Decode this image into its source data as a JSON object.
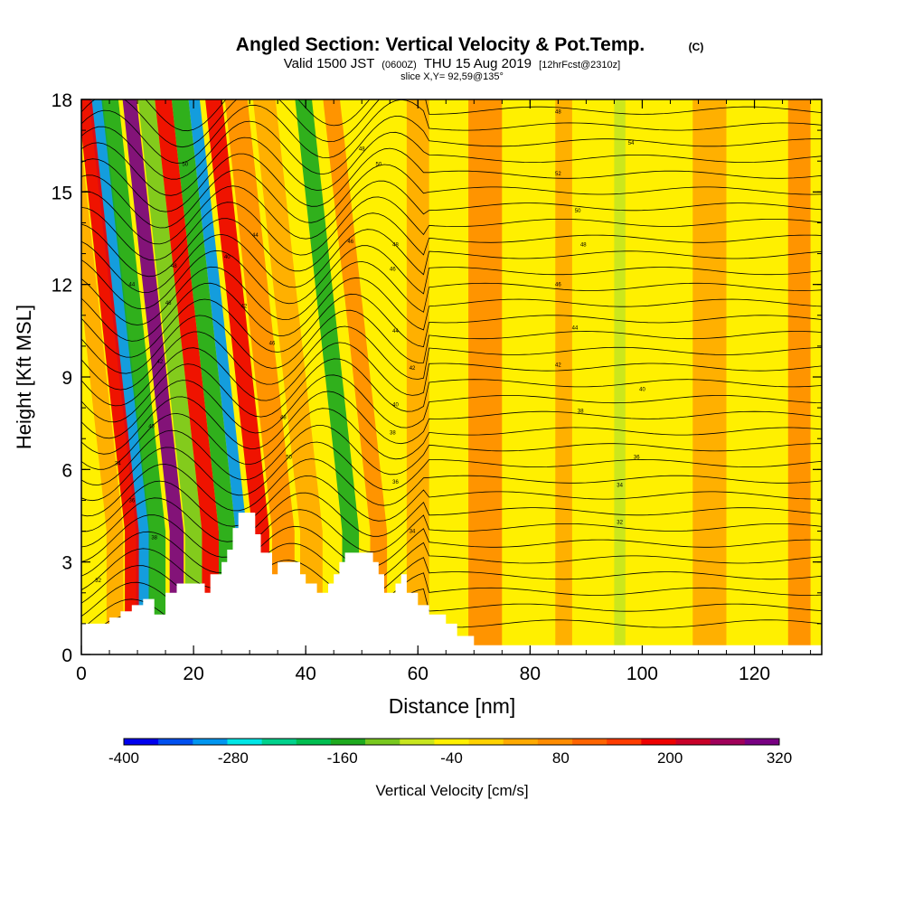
{
  "chart_data": {
    "type": "heatmap",
    "title": "Angled Section: Vertical Velocity & Pot.Temp.",
    "title_mark": "(C)",
    "subtitle": {
      "valid_prefix": "Valid 1500 JST",
      "utc": "(0600Z)",
      "date": "THU 15 Aug 2019",
      "forecast": "[12hrFcst@2310z]"
    },
    "slice_label": "slice X,Y= 92,59@135°",
    "xlabel": "Distance [nm]",
    "ylabel": "Height [Kft MSL]",
    "xlim": [
      0,
      132
    ],
    "ylim": [
      0,
      18
    ],
    "x_ticks": [
      "0",
      "20",
      "40",
      "60",
      "80",
      "100",
      "120"
    ],
    "y_ticks": [
      "0",
      "3",
      "6",
      "9",
      "12",
      "15",
      "18"
    ],
    "colorbar": {
      "label": "Vertical Velocity [cm/s]",
      "range": [
        -400,
        320
      ],
      "tick_labels": [
        "-400",
        "-280",
        "-160",
        "-40",
        "80",
        "200",
        "320"
      ],
      "colors": [
        "#0000ee",
        "#0050f0",
        "#0096f0",
        "#00e6e6",
        "#00d28c",
        "#00be50",
        "#1eaa1e",
        "#78c81e",
        "#c8e61e",
        "#fff000",
        "#ffd200",
        "#ffaa00",
        "#ff8c00",
        "#ff6400",
        "#ff3c00",
        "#ee0000",
        "#c80028",
        "#a0005a",
        "#780082"
      ]
    },
    "velocity_bands": [
      {
        "x": 6,
        "value": 40,
        "width": 3
      },
      {
        "x": 11,
        "value": -300,
        "width": 2.5
      },
      {
        "x": 9,
        "value": 200,
        "width": 2.5
      },
      {
        "x": 13.5,
        "value": -150,
        "width": 3
      },
      {
        "x": 17,
        "value": 320,
        "width": 2.5
      },
      {
        "x": 20,
        "value": -100,
        "width": 3
      },
      {
        "x": 23,
        "value": 200,
        "width": 3
      },
      {
        "x": 26,
        "value": -150,
        "width": 3
      },
      {
        "x": 28.5,
        "value": -320,
        "width": 2
      },
      {
        "x": 32,
        "value": 200,
        "width": 3
      },
      {
        "x": 36,
        "value": 80,
        "width": 4
      },
      {
        "x": 41,
        "value": 40,
        "width": 4
      },
      {
        "x": 48,
        "value": -160,
        "width": 3
      },
      {
        "x": 53,
        "value": 80,
        "width": 3
      },
      {
        "x": 60,
        "value": 40,
        "width": 4
      },
      {
        "x": 72,
        "value": 60,
        "width": 6
      },
      {
        "x": 86,
        "value": 50,
        "width": 3
      },
      {
        "x": 96,
        "value": -60,
        "width": 2
      },
      {
        "x": 112,
        "value": 50,
        "width": 6
      },
      {
        "x": 128,
        "value": 60,
        "width": 4
      }
    ],
    "terrain": [
      [
        0,
        1
      ],
      [
        5,
        1
      ],
      [
        5,
        1.2
      ],
      [
        7,
        1.2
      ],
      [
        7,
        1.4
      ],
      [
        9,
        1.4
      ],
      [
        9,
        1.6
      ],
      [
        11,
        1.6
      ],
      [
        11,
        1.8
      ],
      [
        13,
        1.8
      ],
      [
        13,
        1.3
      ],
      [
        15,
        1.3
      ],
      [
        15,
        2
      ],
      [
        17,
        2
      ],
      [
        17,
        2.3
      ],
      [
        22,
        2.3
      ],
      [
        22,
        2
      ],
      [
        23,
        2
      ],
      [
        23,
        2.6
      ],
      [
        25,
        2.6
      ],
      [
        25,
        3
      ],
      [
        26,
        3
      ],
      [
        26,
        3.4
      ],
      [
        27,
        3.4
      ],
      [
        27,
        4.1
      ],
      [
        28,
        4.1
      ],
      [
        28,
        4.6
      ],
      [
        31,
        4.6
      ],
      [
        31,
        3.9
      ],
      [
        32,
        3.9
      ],
      [
        32,
        3.3
      ],
      [
        34,
        3.3
      ],
      [
        34,
        2.6
      ],
      [
        35,
        2.6
      ],
      [
        35,
        3
      ],
      [
        39,
        3
      ],
      [
        39,
        2.6
      ],
      [
        40,
        2.6
      ],
      [
        40,
        2.3
      ],
      [
        42,
        2.3
      ],
      [
        42,
        2
      ],
      [
        44,
        2
      ],
      [
        44,
        2.3
      ],
      [
        45,
        2.3
      ],
      [
        45,
        2.6
      ],
      [
        46,
        2.6
      ],
      [
        46,
        3
      ],
      [
        47,
        3
      ],
      [
        47,
        3.3
      ],
      [
        52,
        3.3
      ],
      [
        52,
        3
      ],
      [
        53,
        3
      ],
      [
        53,
        2.6
      ],
      [
        54,
        2.6
      ],
      [
        54,
        2
      ],
      [
        56,
        2
      ],
      [
        56,
        2.3
      ],
      [
        57,
        2.3
      ],
      [
        57,
        2.6
      ],
      [
        58,
        2.6
      ],
      [
        58,
        2
      ],
      [
        60,
        2
      ],
      [
        60,
        1.6
      ],
      [
        62,
        1.6
      ],
      [
        62,
        1.3
      ],
      [
        65,
        1.3
      ],
      [
        65,
        1
      ],
      [
        67,
        1
      ],
      [
        67,
        0.6
      ],
      [
        70,
        0.6
      ],
      [
        70,
        0.3
      ],
      [
        132,
        0.3
      ]
    ],
    "isotherm_labels": [
      {
        "x": 3,
        "y": 2.4,
        "text": "32"
      },
      {
        "x": 6.5,
        "y": 6.2,
        "text": "34"
      },
      {
        "x": 9,
        "y": 5,
        "text": "36"
      },
      {
        "x": 13,
        "y": 3.8,
        "text": "38"
      },
      {
        "x": 12.5,
        "y": 7.4,
        "text": "40"
      },
      {
        "x": 14,
        "y": 9.5,
        "text": "42"
      },
      {
        "x": 9,
        "y": 12,
        "text": "44"
      },
      {
        "x": 15.5,
        "y": 11.4,
        "text": "46"
      },
      {
        "x": 16.5,
        "y": 12.6,
        "text": "48"
      },
      {
        "x": 18.5,
        "y": 15.9,
        "text": "50"
      },
      {
        "x": 26,
        "y": 12.9,
        "text": "40"
      },
      {
        "x": 29,
        "y": 11.3,
        "text": "42"
      },
      {
        "x": 31,
        "y": 13.6,
        "text": "44"
      },
      {
        "x": 34,
        "y": 10.1,
        "text": "46"
      },
      {
        "x": 36,
        "y": 7.7,
        "text": "48"
      },
      {
        "x": 37,
        "y": 6.4,
        "text": "50"
      },
      {
        "x": 48,
        "y": 13.4,
        "text": "46"
      },
      {
        "x": 50,
        "y": 16.4,
        "text": "48"
      },
      {
        "x": 53,
        "y": 15.9,
        "text": "50"
      },
      {
        "x": 56,
        "y": 13.3,
        "text": "48"
      },
      {
        "x": 55.5,
        "y": 12.5,
        "text": "46"
      },
      {
        "x": 56,
        "y": 10.5,
        "text": "44"
      },
      {
        "x": 59,
        "y": 9.3,
        "text": "42"
      },
      {
        "x": 56,
        "y": 8.1,
        "text": "40"
      },
      {
        "x": 55.5,
        "y": 7.2,
        "text": "38"
      },
      {
        "x": 56,
        "y": 5.6,
        "text": "36"
      },
      {
        "x": 59,
        "y": 4,
        "text": "34"
      },
      {
        "x": 85,
        "y": 17.6,
        "text": "48"
      },
      {
        "x": 98,
        "y": 16.6,
        "text": "54"
      },
      {
        "x": 85,
        "y": 15.6,
        "text": "52"
      },
      {
        "x": 88.5,
        "y": 14.4,
        "text": "50"
      },
      {
        "x": 89.5,
        "y": 13.3,
        "text": "48"
      },
      {
        "x": 85,
        "y": 12,
        "text": "46"
      },
      {
        "x": 88,
        "y": 10.6,
        "text": "44"
      },
      {
        "x": 85,
        "y": 9.4,
        "text": "42"
      },
      {
        "x": 100,
        "y": 8.6,
        "text": "40"
      },
      {
        "x": 89,
        "y": 7.9,
        "text": "38"
      },
      {
        "x": 99,
        "y": 6.4,
        "text": "36"
      },
      {
        "x": 96,
        "y": 5.5,
        "text": "34"
      },
      {
        "x": 96,
        "y": 4.3,
        "text": "32"
      }
    ]
  }
}
